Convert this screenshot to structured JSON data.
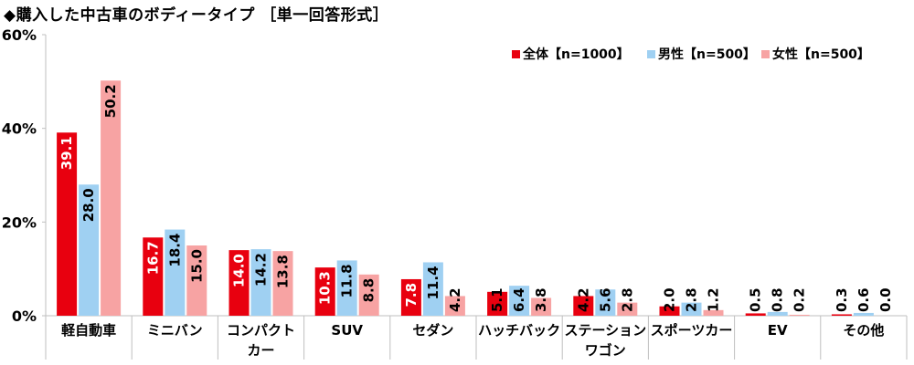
{
  "chart_data": {
    "type": "bar",
    "title": "◆購入した中古車のボディータイプ ［単一回答形式］",
    "categories": [
      "軽自動車",
      "ミニバン",
      "コンパクト\nカー",
      "SUV",
      "セダン",
      "ハッチバック",
      "ステーション\nワゴン",
      "スポーツカー",
      "EV",
      "その他"
    ],
    "series": [
      {
        "name": "全体【n=1000】",
        "color": "#e8000f",
        "values": [
          39.1,
          16.7,
          14.0,
          10.3,
          7.8,
          5.1,
          4.2,
          2.0,
          0.5,
          0.3
        ]
      },
      {
        "name": "男性【n=500】",
        "color": "#9fd0f2",
        "values": [
          28.0,
          18.4,
          14.2,
          11.8,
          11.4,
          6.4,
          5.6,
          2.8,
          0.8,
          0.6
        ]
      },
      {
        "name": "女性【n=500】",
        "color": "#f7a3a3",
        "values": [
          50.2,
          15.0,
          13.8,
          8.8,
          4.2,
          3.8,
          2.8,
          1.2,
          0.2,
          0.0
        ]
      }
    ],
    "ylim": [
      0,
      60
    ],
    "yticks": [
      "0%",
      "20%",
      "40%",
      "60%"
    ],
    "ytick_values": [
      0,
      20,
      40,
      60
    ],
    "legend_position": "top-right",
    "grid": false
  }
}
